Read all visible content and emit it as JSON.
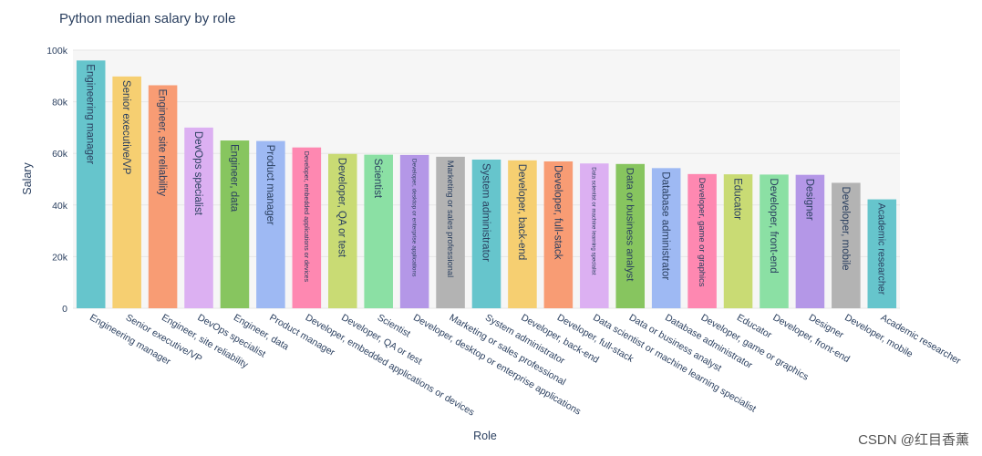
{
  "chart_data": {
    "type": "bar",
    "title": "Python median salary by role",
    "xlabel": "Role",
    "ylabel": "Salary",
    "ylim": [
      0,
      100000
    ],
    "yticks": [
      0,
      20000,
      40000,
      60000,
      80000,
      100000
    ],
    "ytick_labels": [
      "0",
      "20k",
      "40k",
      "60k",
      "80k",
      "100k"
    ],
    "legend": false,
    "categories": [
      "Engineering manager",
      "Senior executive/VP",
      "Engineer, site reliability",
      "DevOps specialist",
      "Engineer, data",
      "Product manager",
      "Developer, embedded applications or devices",
      "Developer, QA or test",
      "Scientist",
      "Developer, desktop or enterprise applications",
      "Marketing or sales professional",
      "System administrator",
      "Developer, back-end",
      "Developer, full-stack",
      "Data scientist or machine learning specialist",
      "Data or business analyst",
      "Database administrator",
      "Developer, game or graphics",
      "Educator",
      "Developer, front-end",
      "Designer",
      "Developer, mobile",
      "Academic researcher"
    ],
    "values": [
      96000,
      89800,
      86400,
      70000,
      65000,
      64800,
      62300,
      59800,
      59500,
      59400,
      58700,
      57600,
      57300,
      56900,
      56100,
      55900,
      54300,
      52000,
      51900,
      51800,
      51700,
      48600,
      42200
    ],
    "colors": [
      "#66c5cc",
      "#f6cf71",
      "#f89c74",
      "#dcb0f2",
      "#87c55f",
      "#9eb9f3",
      "#fe88b1",
      "#c9db74",
      "#8be0a4",
      "#b497e7",
      "#b3b3b3",
      "#66c5cc",
      "#f6cf71",
      "#f89c74",
      "#dcb0f2",
      "#87c55f",
      "#9eb9f3",
      "#fe88b1",
      "#c9db74",
      "#8be0a4",
      "#b497e7",
      "#b3b3b3",
      "#66c5cc"
    ]
  },
  "watermark": "CSDN @红目香薰"
}
